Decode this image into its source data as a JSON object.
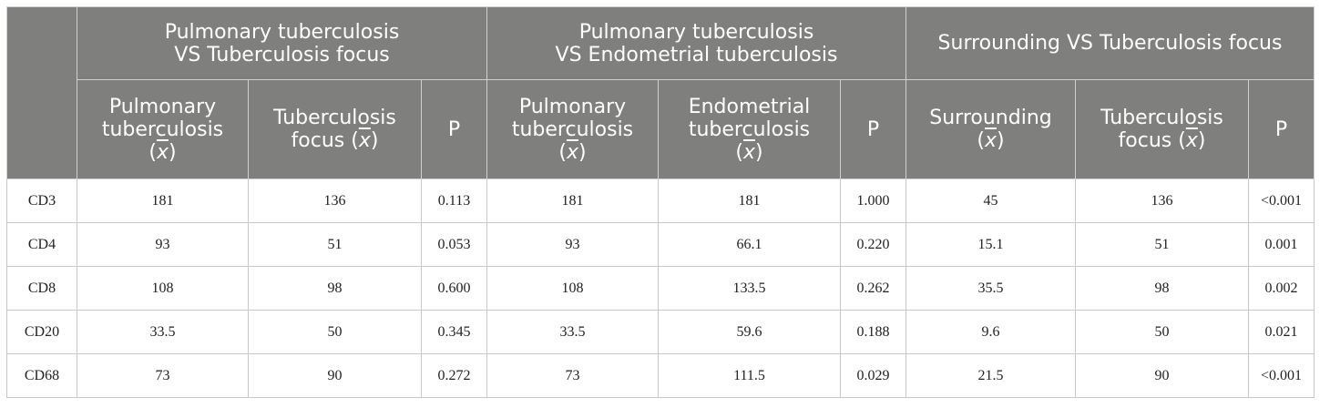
{
  "groups": [
    {
      "line1": "Pulmonary tuberculosis",
      "line2": "VS Tuberculosis focus"
    },
    {
      "line1": "Pulmonary tuberculosis",
      "line2": "VS Endometrial tuberculosis"
    },
    {
      "line1": "Surrounding VS Tuberculosis focus",
      "line2": ""
    }
  ],
  "subheaders": [
    {
      "line1": "Pulmonary",
      "line2": "tuberculosis",
      "line3": "(x)"
    },
    {
      "line1": "Tuberculosis",
      "line2": "focus (x)",
      "line3": ""
    },
    {
      "line1": "P",
      "line2": "",
      "line3": ""
    },
    {
      "line1": "Pulmonary",
      "line2": "tuberculosis",
      "line3": "(x)"
    },
    {
      "line1": "Endometrial",
      "line2": "tuberculosis",
      "line3": "(x)"
    },
    {
      "line1": "P",
      "line2": "",
      "line3": ""
    },
    {
      "line1": "Surrounding",
      "line2": "(x)",
      "line3": ""
    },
    {
      "line1": "Tuberculosis",
      "line2": "focus (x)",
      "line3": ""
    },
    {
      "line1": "P",
      "line2": "",
      "line3": ""
    }
  ],
  "rows": [
    [
      "CD3",
      "181",
      "136",
      "0.113",
      "181",
      "181",
      "1.000",
      "45",
      "136",
      "<0.001"
    ],
    [
      "CD4",
      "93",
      "51",
      "0.053",
      "93",
      "66.1",
      "0.220",
      "15.1",
      "51",
      "0.001"
    ],
    [
      "CD8",
      "108",
      "98",
      "0.600",
      "108",
      "133.5",
      "0.262",
      "35.5",
      "98",
      "0.002"
    ],
    [
      "CD20",
      "33.5",
      "50",
      "0.345",
      "33.5",
      "59.6",
      "0.188",
      "9.6",
      "50",
      "0.021"
    ],
    [
      "CD68",
      "73",
      "90",
      "0.272",
      "73",
      "111.5",
      "0.029",
      "21.5",
      "90",
      "<0.001"
    ]
  ]
}
